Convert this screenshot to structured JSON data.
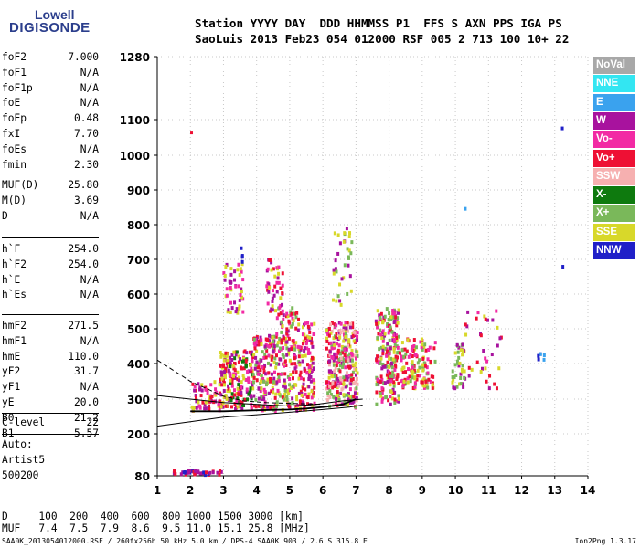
{
  "logo": {
    "line1": "Lowell",
    "line2": "DIGISONDE"
  },
  "header": {
    "line1": "Station YYYY DAY  DDD HHMMSS P1  FFS S AXN PPS IGA PS",
    "line2": "SaoLuis 2013 Feb23 054 012000 RSF 005 2 713 100 10+ 22"
  },
  "params_group1": [
    {
      "name": "foF2",
      "value": "7.000"
    },
    {
      "name": "foF1",
      "value": "N/A"
    },
    {
      "name": "foF1p",
      "value": "N/A"
    },
    {
      "name": "foE",
      "value": "N/A"
    },
    {
      "name": "foEp",
      "value": "0.48"
    },
    {
      "name": "fxI",
      "value": "7.70"
    },
    {
      "name": "foEs",
      "value": "N/A"
    },
    {
      "name": "fmin",
      "value": "2.30"
    }
  ],
  "params_group2": [
    {
      "name": "MUF(D)",
      "value": "25.80"
    },
    {
      "name": "M(D)",
      "value": "3.69"
    },
    {
      "name": "D",
      "value": "N/A"
    }
  ],
  "params_group3": [
    {
      "name": "h`F",
      "value": "254.0"
    },
    {
      "name": "h`F2",
      "value": "254.0"
    },
    {
      "name": "h`E",
      "value": "N/A"
    },
    {
      "name": "h`Es",
      "value": "N/A"
    }
  ],
  "params_group4": [
    {
      "name": "hmF2",
      "value": "271.5"
    },
    {
      "name": "hmF1",
      "value": "N/A"
    },
    {
      "name": "hmE",
      "value": "110.0"
    },
    {
      "name": "yF2",
      "value": "31.7"
    },
    {
      "name": "yF1",
      "value": "N/A"
    },
    {
      "name": "yE",
      "value": "20.0"
    },
    {
      "name": "B0",
      "value": "21.2"
    },
    {
      "name": "B1",
      "value": "5.57"
    }
  ],
  "params_group5": [
    {
      "name": "C-level",
      "value": "22"
    }
  ],
  "auto": {
    "line1": "Auto:",
    "line2": "Artist5",
    "line3": "500200"
  },
  "bottom_table": {
    "row1": "D     100  200  400  600  800 1000 1500 3000 [km]",
    "row2": "MUF   7.4  7.5  7.9  8.6  9.5 11.0 15.1 25.8 [MHz]"
  },
  "footer": {
    "left": "SAA0K_2013054012000.RSF / 260fx256h 50 kHz 5.0 km / DPS-4 SAA0K 903 / 2.6 S 315.8 E",
    "right": "Ion2Png 1.3.17"
  },
  "legend": [
    {
      "label": "NoVal",
      "color": "#a8a8a8"
    },
    {
      "label": "NNE",
      "color": "#33e6f2"
    },
    {
      "label": "E",
      "color": "#3aa2ee"
    },
    {
      "label": "W",
      "color": "#a8129e"
    },
    {
      "label": "Vo-",
      "color": "#f22aa4"
    },
    {
      "label": "Vo+",
      "color": "#ee1034"
    },
    {
      "label": "SSW",
      "color": "#f6b0b0"
    },
    {
      "label": "X-",
      "color": "#0e7a0e"
    },
    {
      "label": "X+",
      "color": "#7ab85a"
    },
    {
      "label": "SSE",
      "color": "#d8d82a"
    },
    {
      "label": "NNW",
      "color": "#2020c8"
    }
  ],
  "chart_data": {
    "type": "scatter",
    "xlim": [
      1,
      14
    ],
    "x_ticks": [
      1,
      2,
      3,
      4,
      5,
      6,
      7,
      8,
      9,
      10,
      11,
      12,
      13,
      14
    ],
    "y_ticks": [
      80,
      200,
      300,
      400,
      500,
      600,
      700,
      800,
      900,
      1000,
      1100,
      1280
    ],
    "grid": true,
    "clusters": [
      {
        "xr": [
          2.05,
          2.95
        ],
        "yr": [
          265,
          350
        ],
        "n": 60,
        "c": [
          "#a8129e",
          "#d8d82a",
          "#ee1034",
          "#f22aa4"
        ]
      },
      {
        "xr": [
          2.9,
          3.2
        ],
        "yr": [
          270,
          440
        ],
        "n": 70,
        "c": [
          "#d8d82a",
          "#a8129e",
          "#ee1034"
        ]
      },
      {
        "xr": [
          3.2,
          3.9
        ],
        "yr": [
          270,
          440
        ],
        "n": 130,
        "c": [
          "#d8d82a",
          "#ee1034",
          "#a8129e",
          "#f22aa4",
          "#0e7a0e"
        ]
      },
      {
        "xr": [
          3.9,
          4.6
        ],
        "yr": [
          265,
          480
        ],
        "n": 160,
        "c": [
          "#d8d82a",
          "#ee1034",
          "#a8129e",
          "#f22aa4",
          "#7ab85a"
        ]
      },
      {
        "xr": [
          4.6,
          5.3
        ],
        "yr": [
          265,
          560
        ],
        "n": 170,
        "c": [
          "#d8d82a",
          "#ee1034",
          "#a8129e",
          "#f22aa4",
          "#7ab85a"
        ]
      },
      {
        "xr": [
          5.3,
          5.75
        ],
        "yr": [
          265,
          520
        ],
        "n": 110,
        "c": [
          "#d8d82a",
          "#ee1034",
          "#a8129e",
          "#f22aa4"
        ]
      },
      {
        "xr": [
          6.1,
          7.05
        ],
        "yr": [
          275,
          520
        ],
        "n": 320,
        "c": [
          "#ee1034",
          "#f22aa4",
          "#a8129e",
          "#d8d82a",
          "#f6b0b0",
          "#7ab85a"
        ]
      },
      {
        "xr": [
          7.6,
          8.3
        ],
        "yr": [
          285,
          560
        ],
        "n": 220,
        "c": [
          "#ee1034",
          "#f22aa4",
          "#a8129e",
          "#d8d82a",
          "#7ab85a"
        ]
      },
      {
        "xr": [
          8.3,
          9.4
        ],
        "yr": [
          330,
          470
        ],
        "n": 130,
        "c": [
          "#d8d82a",
          "#7ab85a",
          "#f22aa4",
          "#ee1034"
        ]
      },
      {
        "xr": [
          9.9,
          10.3
        ],
        "yr": [
          330,
          460
        ],
        "n": 40,
        "c": [
          "#d8d82a",
          "#7ab85a",
          "#a8129e"
        ]
      },
      {
        "xr": [
          10.2,
          11.4
        ],
        "yr": [
          330,
          560
        ],
        "n": 35,
        "c": [
          "#d8d82a",
          "#a8129e",
          "#f22aa4",
          "#ee1034"
        ]
      },
      {
        "xr": [
          12.5,
          12.7
        ],
        "yr": [
          410,
          430
        ],
        "n": 6,
        "c": [
          "#3aa2ee",
          "#2020c8"
        ]
      },
      {
        "xr": [
          3.0,
          3.6
        ],
        "yr": [
          540,
          690
        ],
        "n": 45,
        "c": [
          "#a8129e",
          "#f22aa4",
          "#d8d82a"
        ]
      },
      {
        "xr": [
          4.3,
          4.8
        ],
        "yr": [
          540,
          700
        ],
        "n": 45,
        "c": [
          "#a8129e",
          "#f22aa4",
          "#d8d82a",
          "#ee1034"
        ]
      },
      {
        "xr": [
          6.3,
          6.9
        ],
        "yr": [
          560,
          790
        ],
        "n": 35,
        "c": [
          "#d8d82a",
          "#a8129e",
          "#7ab85a"
        ]
      },
      {
        "xr": [
          3.5,
          3.7
        ],
        "yr": [
          690,
          740
        ],
        "n": 4,
        "c": [
          "#2020c8"
        ]
      },
      {
        "xr": [
          1.5,
          3.0
        ],
        "yr": [
          82,
          95
        ],
        "n": 40,
        "c": [
          "#2020c8",
          "#a8129e",
          "#ee1034"
        ]
      },
      {
        "xr": [
          13.1,
          13.25
        ],
        "yr": [
          670,
          680
        ],
        "n": 1,
        "c": [
          "#2020c8"
        ]
      },
      {
        "xr": [
          13.1,
          13.25
        ],
        "yr": [
          1075,
          1085
        ],
        "n": 1,
        "c": [
          "#2020c8"
        ]
      },
      {
        "xr": [
          2.0,
          2.1
        ],
        "yr": [
          1060,
          1070
        ],
        "n": 1,
        "c": [
          "#ee1034"
        ]
      },
      {
        "xr": [
          10.2,
          10.3
        ],
        "yr": [
          840,
          850
        ],
        "n": 1,
        "c": [
          "#3aa2ee"
        ]
      }
    ],
    "profile_dashed": [
      [
        1,
        410
      ],
      [
        1.5,
        380
      ],
      [
        2,
        350
      ],
      [
        2.6,
        325
      ],
      [
        3,
        308
      ],
      [
        3.6,
        295
      ],
      [
        4.3,
        290
      ],
      [
        5,
        288
      ],
      [
        6,
        285
      ]
    ],
    "profile_upper": [
      [
        1,
        310
      ],
      [
        2,
        300
      ],
      [
        3,
        290
      ],
      [
        4,
        285
      ],
      [
        5,
        280
      ],
      [
        5.8,
        285
      ],
      [
        6.6,
        295
      ],
      [
        7.2,
        300
      ]
    ],
    "profile_lower": [
      [
        1,
        222
      ],
      [
        2,
        235
      ],
      [
        3,
        248
      ],
      [
        4,
        255
      ],
      [
        5,
        262
      ],
      [
        6,
        270
      ],
      [
        6.8,
        277
      ],
      [
        7.2,
        283
      ]
    ],
    "trace": [
      [
        2,
        265
      ],
      [
        3,
        265
      ],
      [
        4,
        268
      ],
      [
        5,
        270
      ],
      [
        5.5,
        273
      ],
      [
        6.1,
        278
      ],
      [
        6.6,
        285
      ],
      [
        7.0,
        300
      ]
    ]
  }
}
